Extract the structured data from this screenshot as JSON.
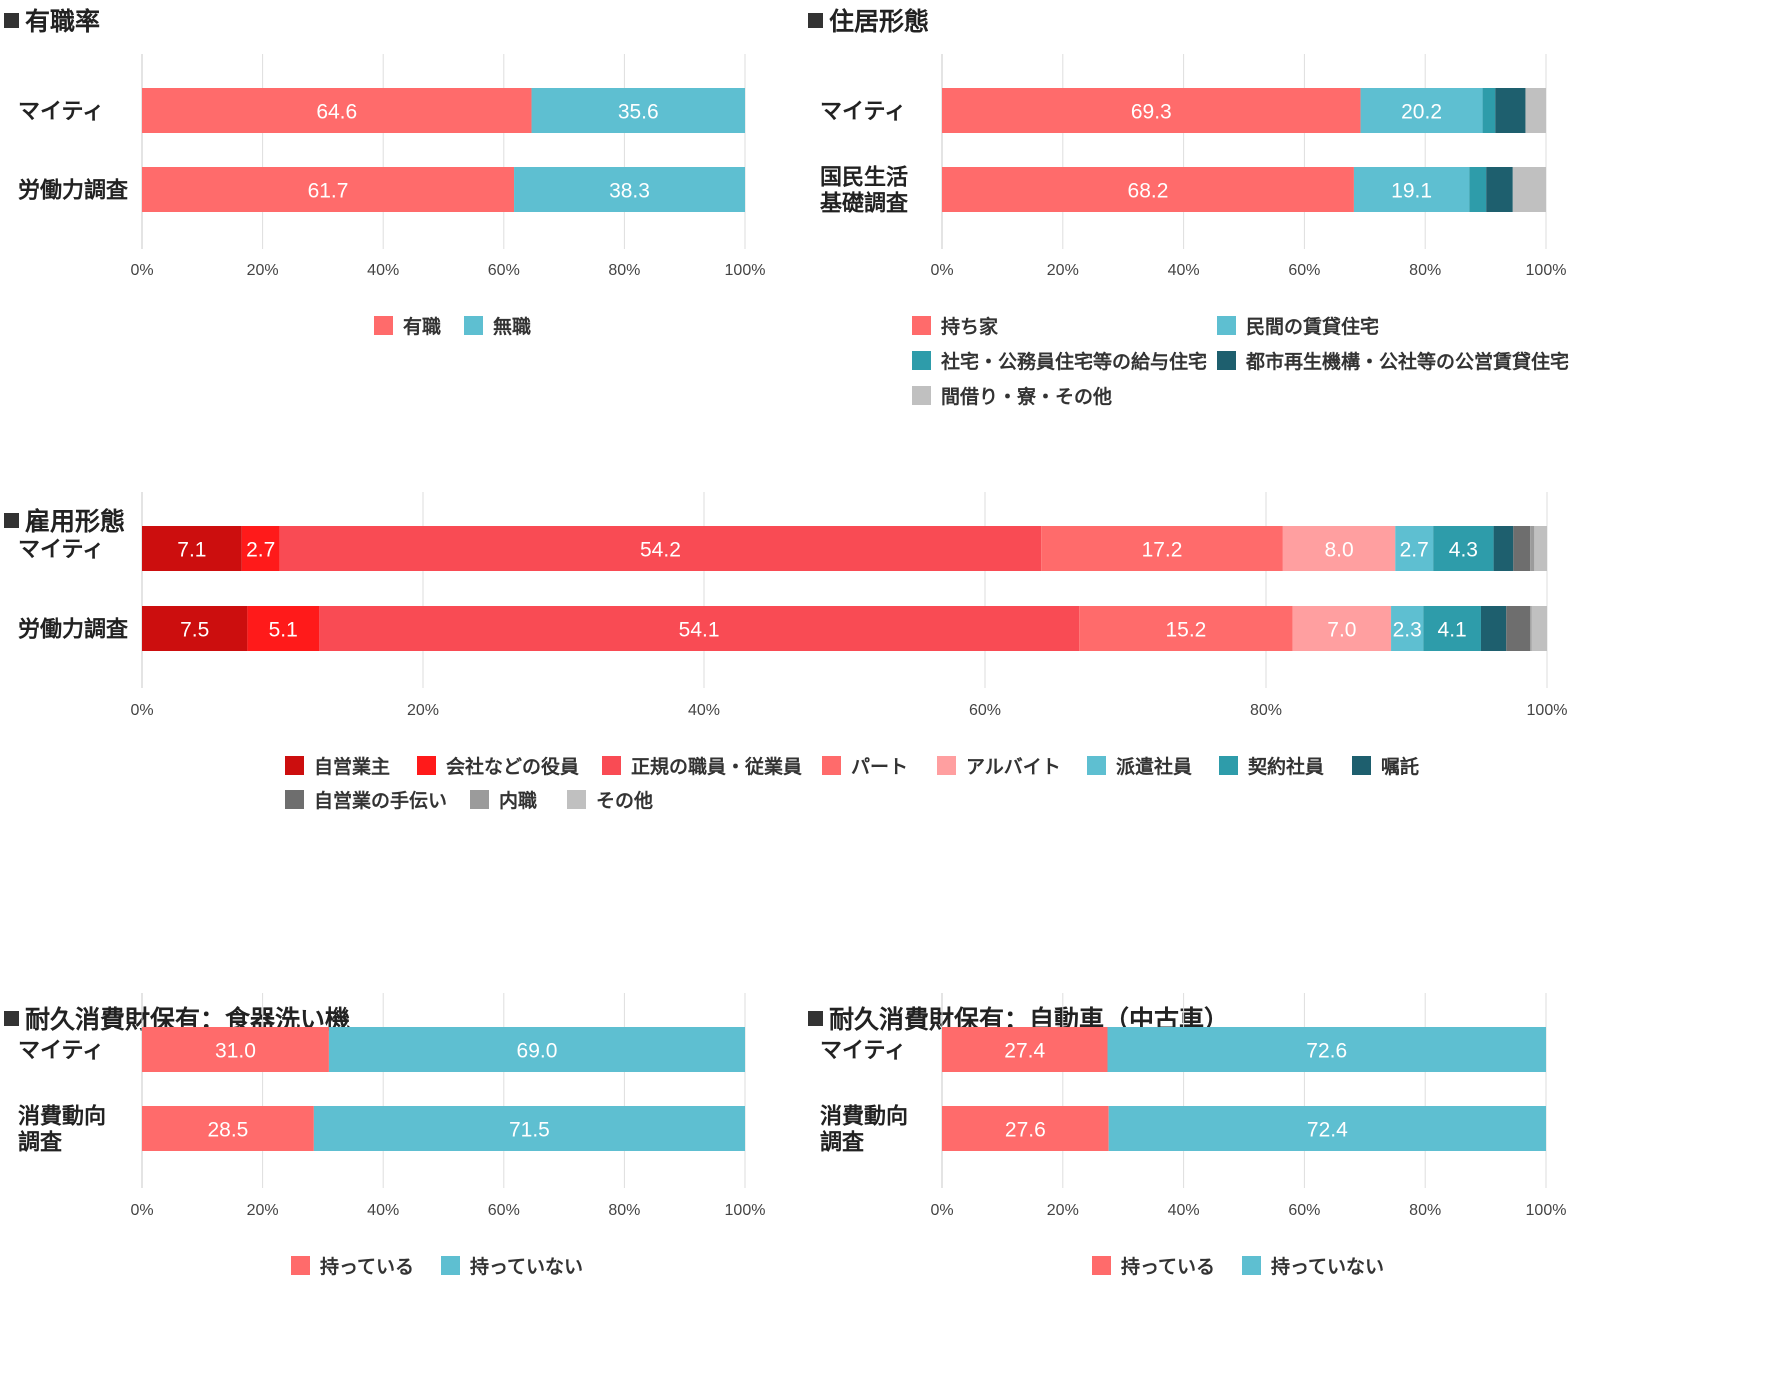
{
  "panels": [
    {
      "id": "employment-rate",
      "title": "有職率",
      "chart_data": {
        "type": "bar",
        "orientation": "horizontal-stacked-100",
        "categories": [
          "マイティ",
          "労働力調査"
        ],
        "series": [
          {
            "name": "有職",
            "color": "#ff6b6b",
            "values": [
              64.6,
              61.7
            ]
          },
          {
            "name": "無職",
            "color": "#5ebfd1",
            "values": [
              35.6,
              38.3
            ]
          }
        ],
        "data_labels": [
          [
            "64.6",
            "35.6"
          ],
          [
            "61.7",
            "38.3"
          ]
        ],
        "xticks": [
          "0%",
          "20%",
          "40%",
          "60%",
          "80%",
          "100%"
        ],
        "xlim": [
          0,
          100
        ],
        "grid": true,
        "legend_position": "bottom"
      }
    },
    {
      "id": "housing-type",
      "title": "住居形態",
      "chart_data": {
        "type": "bar",
        "orientation": "horizontal-stacked-100",
        "categories": [
          "マイティ",
          "国民生活\n基礎調査"
        ],
        "series": [
          {
            "name": "持ち家",
            "color": "#ff6b6b",
            "values": [
              69.3,
              68.2
            ]
          },
          {
            "name": "民間の賃貸住宅",
            "color": "#5ebfd1",
            "values": [
              20.2,
              19.1
            ]
          },
          {
            "name": "社宅・公務員住宅等の給与住宅",
            "color": "#2e9caa",
            "values": [
              2.1,
              2.8
            ]
          },
          {
            "name": "都市再生機構・公社等の公営賃貸住宅",
            "color": "#1e5f6e",
            "values": [
              5.0,
              4.4
            ]
          },
          {
            "name": "間借り・寮・その他",
            "color": "#c0c0c0",
            "values": [
              3.4,
              5.5
            ]
          }
        ],
        "data_labels": [
          [
            "69.3",
            "20.2",
            "",
            "",
            ""
          ],
          [
            "68.2",
            "19.1",
            "",
            "",
            ""
          ]
        ],
        "xticks": [
          "0%",
          "20%",
          "40%",
          "60%",
          "80%",
          "100%"
        ],
        "xlim": [
          0,
          100
        ],
        "grid": true,
        "legend_position": "bottom"
      }
    },
    {
      "id": "employment-type",
      "title": "雇用形態",
      "chart_data": {
        "type": "bar",
        "orientation": "horizontal-stacked-100",
        "categories": [
          "マイティ",
          "労働力調査"
        ],
        "series": [
          {
            "name": "自営業主",
            "color": "#cc0e0e",
            "values": [
              7.1,
              7.5
            ]
          },
          {
            "name": "会社などの役員",
            "color": "#ff1a1a",
            "values": [
              2.7,
              5.1
            ]
          },
          {
            "name": "正規の職員・従業員",
            "color": "#f94b54",
            "values": [
              54.2,
              54.1
            ]
          },
          {
            "name": "パート",
            "color": "#ff6b6b",
            "values": [
              17.2,
              15.2
            ]
          },
          {
            "name": "アルバイト",
            "color": "#ff9fa0",
            "values": [
              8.0,
              7.0
            ]
          },
          {
            "name": "派遣社員",
            "color": "#5ebfd1",
            "values": [
              2.7,
              2.3
            ]
          },
          {
            "name": "契約社員",
            "color": "#2e9caa",
            "values": [
              4.3,
              4.1
            ]
          },
          {
            "name": "嘱託",
            "color": "#1e5f6e",
            "values": [
              1.4,
              1.8
            ]
          },
          {
            "name": "自営業の手伝い",
            "color": "#6e6e6e",
            "values": [
              1.2,
              1.7
            ]
          },
          {
            "name": "内職",
            "color": "#9b9b9b",
            "values": [
              0.3,
              0.1
            ]
          },
          {
            "name": "その他",
            "color": "#c0c0c0",
            "values": [
              1.1,
              1.4
            ]
          }
        ],
        "data_labels": [
          [
            "7.1",
            "2.7",
            "54.2",
            "17.2",
            "8.0",
            "2.7",
            "4.3",
            "",
            "",
            "",
            ""
          ],
          [
            "7.5",
            "5.1",
            "54.1",
            "15.2",
            "7.0",
            "2.3",
            "4.1",
            "",
            "",
            "",
            ""
          ]
        ],
        "xticks": [
          "0%",
          "20%",
          "40%",
          "60%",
          "80%",
          "100%"
        ],
        "xlim": [
          0,
          100
        ],
        "grid": true,
        "legend_position": "bottom"
      }
    },
    {
      "id": "dishwasher",
      "title": "耐久消費財保有：食器洗い機",
      "chart_data": {
        "type": "bar",
        "orientation": "horizontal-stacked-100",
        "categories": [
          "マイティ",
          "消費動向\n調査"
        ],
        "series": [
          {
            "name": "持っている",
            "color": "#ff6b6b",
            "values": [
              31.0,
              28.5
            ]
          },
          {
            "name": "持っていない",
            "color": "#5ebfd1",
            "values": [
              69.0,
              71.5
            ]
          }
        ],
        "data_labels": [
          [
            "31.0",
            "69.0"
          ],
          [
            "28.5",
            "71.5"
          ]
        ],
        "xticks": [
          "0%",
          "20%",
          "40%",
          "60%",
          "80%",
          "100%"
        ],
        "xlim": [
          0,
          100
        ],
        "grid": true,
        "legend_position": "bottom"
      }
    },
    {
      "id": "used-car",
      "title": "耐久消費財保有：自動車（中古車）",
      "chart_data": {
        "type": "bar",
        "orientation": "horizontal-stacked-100",
        "categories": [
          "マイティ",
          "消費動向\n調査"
        ],
        "series": [
          {
            "name": "持っている",
            "color": "#ff6b6b",
            "values": [
              27.4,
              27.6
            ]
          },
          {
            "name": "持っていない",
            "color": "#5ebfd1",
            "values": [
              72.6,
              72.4
            ]
          }
        ],
        "data_labels": [
          [
            "27.4",
            "72.6"
          ],
          [
            "27.6",
            "72.4"
          ]
        ],
        "xticks": [
          "0%",
          "20%",
          "40%",
          "60%",
          "80%",
          "100%"
        ],
        "xlim": [
          0,
          100
        ],
        "grid": true,
        "legend_position": "bottom"
      }
    }
  ]
}
